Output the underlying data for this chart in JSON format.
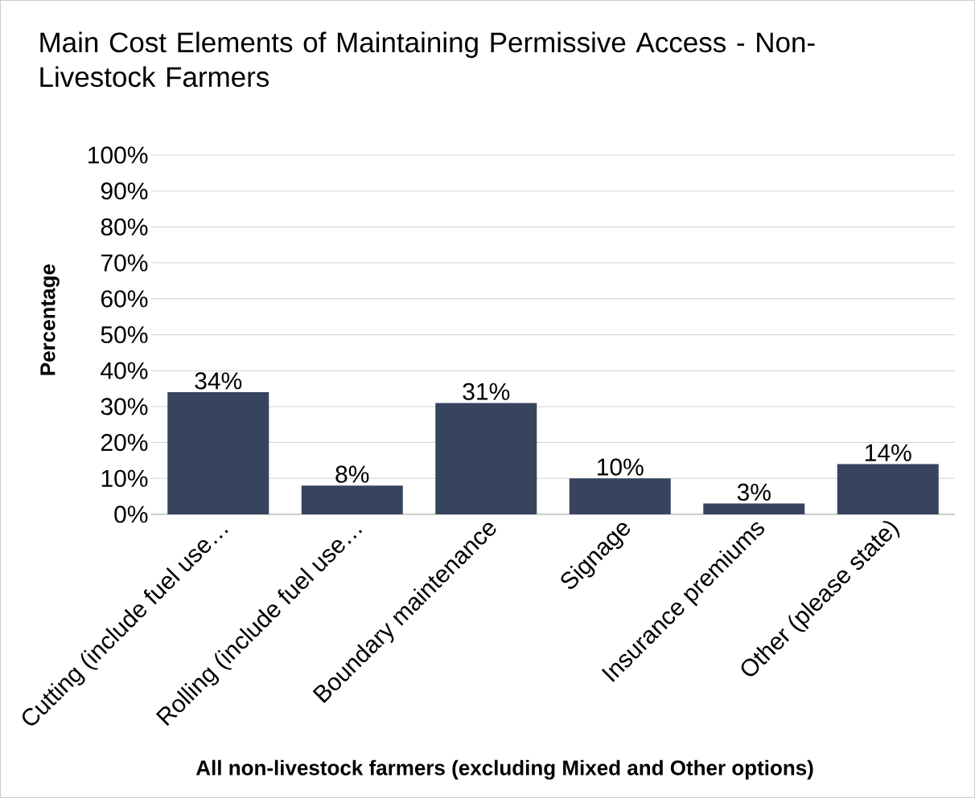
{
  "chart_data": {
    "type": "bar",
    "title": "Main Cost Elements of Maintaining Permissive Access - Non-Livestock Farmers",
    "xlabel": "All non-livestock farmers (excluding Mixed and Other options)",
    "ylabel": "Percentage",
    "categories": [
      "Cutting (include fuel use…",
      "Rolling (include fuel use…",
      "Boundary maintenance",
      "Signage",
      "Insurance premiums",
      "Other (please state)"
    ],
    "values": [
      34,
      8,
      31,
      10,
      3,
      14
    ],
    "value_labels": [
      "34%",
      "8%",
      "31%",
      "10%",
      "3%",
      "14%"
    ],
    "color": "#36445e",
    "ylim": [
      0,
      100
    ],
    "yticks": [
      {
        "value": 0,
        "label": "0%"
      },
      {
        "value": 10,
        "label": "10%"
      },
      {
        "value": 20,
        "label": "20%"
      },
      {
        "value": 30,
        "label": "30%"
      },
      {
        "value": 40,
        "label": "40%"
      },
      {
        "value": 50,
        "label": "50%"
      },
      {
        "value": 60,
        "label": "60%"
      },
      {
        "value": 70,
        "label": "70%"
      },
      {
        "value": 80,
        "label": "80%"
      },
      {
        "value": 90,
        "label": "90%"
      },
      {
        "value": 100,
        "label": "100%"
      }
    ],
    "grid": "y"
  }
}
